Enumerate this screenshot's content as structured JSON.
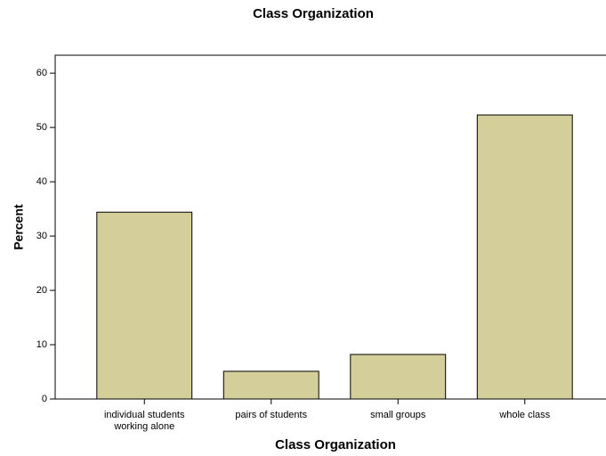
{
  "chart_data": {
    "type": "bar",
    "title": "Class Organization",
    "x_label": "Class Organization",
    "y_label": "Percent",
    "categories": [
      "individual students working alone",
      "pairs of students",
      "small groups",
      "whole class"
    ],
    "values": [
      34.4,
      5.1,
      8.2,
      52.3
    ],
    "color": "#d4cf9a",
    "ylim": [
      0,
      63.3
    ],
    "yticks": [
      0,
      10,
      20,
      30,
      40,
      50,
      60
    ]
  }
}
